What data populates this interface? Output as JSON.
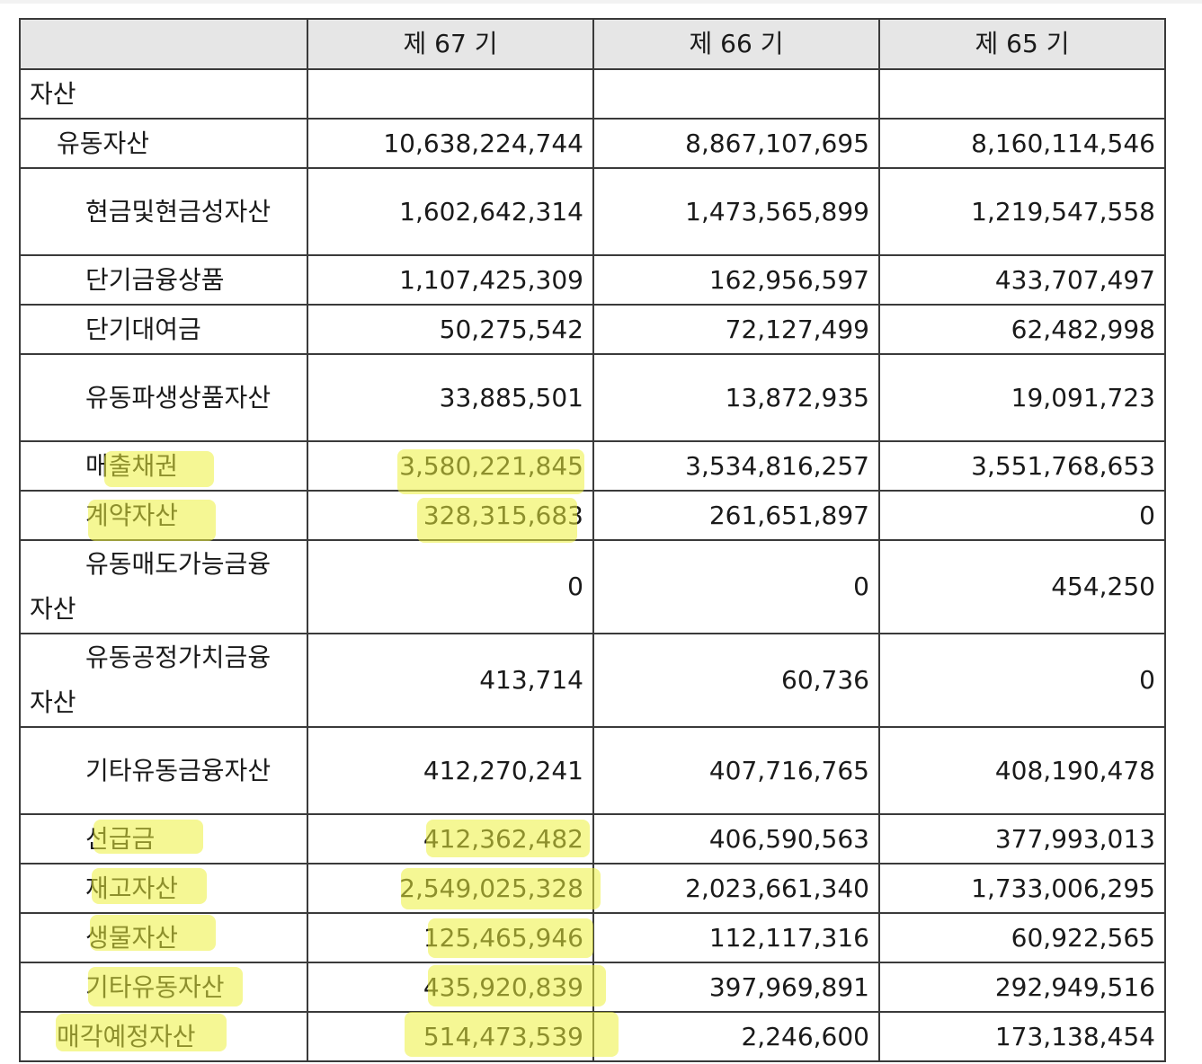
{
  "header": {
    "blank": "",
    "periods": [
      "제 67 기",
      "제 66 기",
      "제 65 기"
    ]
  },
  "rows": [
    {
      "label": "자산",
      "values": [
        "",
        "",
        ""
      ]
    },
    {
      "label": "유동자산",
      "values": [
        "10,638,224,744",
        "8,867,107,695",
        "8,160,114,546"
      ]
    },
    {
      "label": "현금및현금성자산",
      "values": [
        "1,602,642,314",
        "1,473,565,899",
        "1,219,547,558"
      ]
    },
    {
      "label": "단기금융상품",
      "values": [
        "1,107,425,309",
        "162,956,597",
        "433,707,497"
      ]
    },
    {
      "label": "단기대여금",
      "values": [
        "50,275,542",
        "72,127,499",
        "62,482,998"
      ]
    },
    {
      "label": "유동파생상품자산",
      "values": [
        "33,885,501",
        "13,872,935",
        "19,091,723"
      ]
    },
    {
      "label": "매출채권",
      "values": [
        "3,580,221,845",
        "3,534,816,257",
        "3,551,768,653"
      ]
    },
    {
      "label": "계약자산",
      "values": [
        "328,315,683",
        "261,651,897",
        "0"
      ]
    },
    {
      "label_line1": "유동매도가능금융",
      "label_line2": "자산",
      "values": [
        "0",
        "0",
        "454,250"
      ]
    },
    {
      "label_line1": "유동공정가치금융",
      "label_line2": "자산",
      "values": [
        "413,714",
        "60,736",
        "0"
      ]
    },
    {
      "label": "기타유동금융자산",
      "values": [
        "412,270,241",
        "407,716,765",
        "408,190,478"
      ]
    },
    {
      "label": "선급금",
      "values": [
        "412,362,482",
        "406,590,563",
        "377,993,013"
      ]
    },
    {
      "label": "재고자산",
      "values": [
        "2,549,025,328",
        "2,023,661,340",
        "1,733,006,295"
      ]
    },
    {
      "label": "생물자산",
      "values": [
        "125,465,946",
        "112,117,316",
        "60,922,565"
      ]
    },
    {
      "label": "기타유동자산",
      "values": [
        "435,920,839",
        "397,969,891",
        "292,949,516"
      ]
    },
    {
      "label": "매각예정자산",
      "values": [
        "514,473,539",
        "2,246,600",
        "173,138,454"
      ]
    }
  ],
  "highlight_color": "#ecf03c"
}
